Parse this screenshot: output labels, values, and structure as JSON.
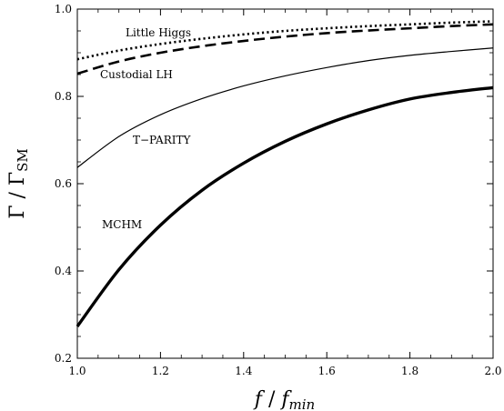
{
  "chart_data": {
    "type": "line",
    "xlabel": {
      "main": "f",
      "sep": " / ",
      "sub_main": "f",
      "sub": "min"
    },
    "ylabel": {
      "main": "Γ",
      "sep": " / ",
      "sub_main": "Γ",
      "sub": "SM"
    },
    "xlim": [
      1.0,
      2.0
    ],
    "ylim": [
      0.2,
      1.0
    ],
    "x_ticks": [
      "1.0",
      "1.2",
      "1.4",
      "1.6",
      "1.8",
      "2.0"
    ],
    "y_ticks": [
      "0.2",
      "0.4",
      "0.6",
      "0.8",
      "1.0"
    ],
    "x_tick_values": [
      1.0,
      1.2,
      1.4,
      1.6,
      1.8,
      2.0
    ],
    "y_tick_values": [
      0.2,
      0.4,
      0.6,
      0.8,
      1.0
    ],
    "grid": false,
    "series": [
      {
        "name": "Little Higgs",
        "style": "dotted",
        "x": [
          1.0,
          1.1,
          1.2,
          1.3,
          1.4,
          1.5,
          1.6,
          1.7,
          1.8,
          1.9,
          2.0
        ],
        "y": [
          0.885,
          0.905,
          0.92,
          0.932,
          0.942,
          0.95,
          0.956,
          0.961,
          0.965,
          0.969,
          0.972
        ]
      },
      {
        "name": "Custodial LH",
        "style": "dashed",
        "x": [
          1.0,
          1.1,
          1.2,
          1.3,
          1.4,
          1.5,
          1.6,
          1.7,
          1.8,
          1.9,
          2.0
        ],
        "y": [
          0.852,
          0.88,
          0.9,
          0.915,
          0.927,
          0.937,
          0.945,
          0.951,
          0.956,
          0.961,
          0.965
        ]
      },
      {
        "name": "T−PARITY",
        "style": "thin",
        "x": [
          1.0,
          1.1,
          1.2,
          1.3,
          1.4,
          1.5,
          1.6,
          1.7,
          1.8,
          1.9,
          2.0
        ],
        "y": [
          0.637,
          0.708,
          0.758,
          0.795,
          0.824,
          0.847,
          0.866,
          0.882,
          0.894,
          0.903,
          0.911
        ]
      },
      {
        "name": "MCHM",
        "style": "thick",
        "x": [
          1.0,
          1.1,
          1.2,
          1.3,
          1.4,
          1.5,
          1.6,
          1.7,
          1.8,
          1.9,
          2.0
        ],
        "y": [
          0.273,
          0.403,
          0.505,
          0.585,
          0.647,
          0.697,
          0.737,
          0.769,
          0.794,
          0.809,
          0.82
        ]
      }
    ],
    "annotations": [
      {
        "text": "Little Higgs",
        "series": "Little Higgs"
      },
      {
        "text": "Custodial LH",
        "series": "Custodial LH"
      },
      {
        "text": "T−PARITY",
        "series": "T−PARITY"
      },
      {
        "text": "MCHM",
        "series": "MCHM"
      }
    ]
  }
}
